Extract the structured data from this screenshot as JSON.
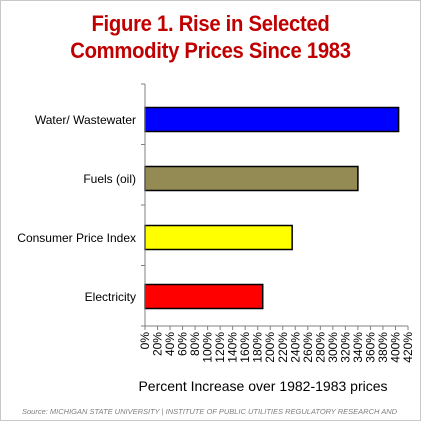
{
  "title_line1": "Figure 1. Rise in Selected",
  "title_line2": "Commodity Prices Since 1983",
  "source": "Source: MICHIGAN STATE UNIVERSITY | INSTITUTE OF PUBLIC UTILITIES REGULATORY RESEARCH AND",
  "chart_data": {
    "type": "bar",
    "orientation": "horizontal",
    "title": "Figure 1. Rise in Selected Commodity Prices Since 1983",
    "xlabel": "Percent Increase over 1982-1983 prices",
    "ylabel": "",
    "categories": [
      "Water/ Wastewater",
      "Fuels (oil)",
      "Consumer Price Index",
      "Electricity"
    ],
    "values": [
      405,
      340,
      235,
      188
    ],
    "colors": [
      "#0000ff",
      "#948a54",
      "#ffff00",
      "#ff0000"
    ],
    "xlim": [
      0,
      420
    ],
    "xticks": [
      "0%",
      "20%",
      "40%",
      "60%",
      "80%",
      "100%",
      "120%",
      "140%",
      "160%",
      "180%",
      "200%",
      "220%",
      "240%",
      "260%",
      "280%",
      "300%",
      "320%",
      "340%",
      "360%",
      "380%",
      "400%",
      "420%"
    ],
    "grid": false,
    "legend": "none"
  }
}
